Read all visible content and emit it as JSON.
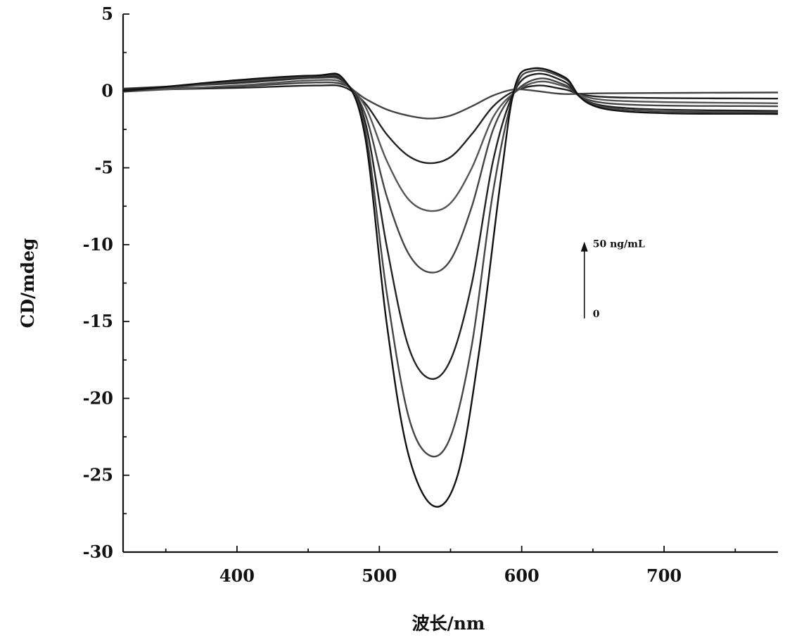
{
  "chart_data": {
    "type": "line",
    "title": "",
    "xlabel": "波长/nm",
    "ylabel": "CD/mdeg",
    "xlim": [
      320,
      780
    ],
    "ylim": [
      -30,
      5
    ],
    "xticks": [
      400,
      500,
      600,
      700
    ],
    "yticks": [
      5,
      0,
      -5,
      -10,
      -15,
      -20,
      -25,
      -30
    ],
    "grid": false,
    "annotation": {
      "top_label": "50 ng/mL",
      "bottom_label": "0",
      "x": 644,
      "y_from": -14.8,
      "y_to": -9.9
    },
    "series": [
      {
        "points": [
          [
            320,
            0.1
          ],
          [
            400,
            0.3
          ],
          [
            455,
            0.55
          ],
          [
            475,
            0.4
          ],
          [
            490,
            -0.5
          ],
          [
            505,
            -1.2
          ],
          [
            520,
            -1.6
          ],
          [
            535,
            -1.8
          ],
          [
            550,
            -1.6
          ],
          [
            565,
            -1.0
          ],
          [
            580,
            -0.3
          ],
          [
            595,
            0.1
          ],
          [
            610,
            0.0
          ],
          [
            630,
            -0.2
          ],
          [
            660,
            -0.15
          ],
          [
            780,
            -0.1
          ]
        ]
      },
      {
        "points": [
          [
            320,
            0.05
          ],
          [
            400,
            0.2
          ],
          [
            455,
            0.35
          ],
          [
            475,
            0.25
          ],
          [
            490,
            -0.8
          ],
          [
            505,
            -2.8
          ],
          [
            520,
            -4.2
          ],
          [
            535,
            -4.7
          ],
          [
            550,
            -4.3
          ],
          [
            565,
            -2.8
          ],
          [
            580,
            -1.0
          ],
          [
            595,
            0.0
          ],
          [
            612,
            0.35
          ],
          [
            630,
            0.1
          ],
          [
            660,
            -0.4
          ],
          [
            780,
            -0.5
          ]
        ]
      },
      {
        "points": [
          [
            320,
            -0.05
          ],
          [
            400,
            0.35
          ],
          [
            455,
            0.7
          ],
          [
            475,
            0.5
          ],
          [
            490,
            -1.0
          ],
          [
            505,
            -4.5
          ],
          [
            520,
            -7.0
          ],
          [
            535,
            -7.8
          ],
          [
            550,
            -7.3
          ],
          [
            565,
            -5.0
          ],
          [
            580,
            -1.7
          ],
          [
            595,
            -0.1
          ],
          [
            612,
            0.6
          ],
          [
            630,
            0.3
          ],
          [
            660,
            -0.6
          ],
          [
            780,
            -0.8
          ]
        ]
      },
      {
        "points": [
          [
            320,
            0.15
          ],
          [
            400,
            0.5
          ],
          [
            455,
            0.85
          ],
          [
            475,
            0.6
          ],
          [
            490,
            -1.5
          ],
          [
            505,
            -6.8
          ],
          [
            520,
            -10.5
          ],
          [
            535,
            -11.8
          ],
          [
            550,
            -11.0
          ],
          [
            565,
            -7.5
          ],
          [
            580,
            -2.5
          ],
          [
            595,
            -0.1
          ],
          [
            612,
            0.8
          ],
          [
            630,
            0.4
          ],
          [
            660,
            -0.8
          ],
          [
            780,
            -1.0
          ]
        ]
      },
      {
        "points": [
          [
            320,
            0.1
          ],
          [
            400,
            0.55
          ],
          [
            455,
            0.9
          ],
          [
            475,
            0.65
          ],
          [
            490,
            -2.0
          ],
          [
            505,
            -10.0
          ],
          [
            520,
            -16.5
          ],
          [
            535,
            -18.7
          ],
          [
            550,
            -17.5
          ],
          [
            565,
            -12.5
          ],
          [
            580,
            -4.5
          ],
          [
            595,
            0.0
          ],
          [
            610,
            1.1
          ],
          [
            630,
            0.6
          ],
          [
            660,
            -1.0
          ],
          [
            780,
            -1.3
          ]
        ]
      },
      {
        "points": [
          [
            320,
            -0.05
          ],
          [
            400,
            0.6
          ],
          [
            455,
            0.95
          ],
          [
            475,
            0.7
          ],
          [
            490,
            -2.5
          ],
          [
            505,
            -13.0
          ],
          [
            520,
            -21.0
          ],
          [
            535,
            -23.7
          ],
          [
            550,
            -22.5
          ],
          [
            565,
            -16.5
          ],
          [
            580,
            -6.5
          ],
          [
            595,
            0.0
          ],
          [
            608,
            1.3
          ],
          [
            630,
            0.8
          ],
          [
            660,
            -1.1
          ],
          [
            780,
            -1.4
          ]
        ]
      },
      {
        "points": [
          [
            320,
            0.0
          ],
          [
            400,
            0.7
          ],
          [
            455,
            1.0
          ],
          [
            475,
            0.75
          ],
          [
            490,
            -3.0
          ],
          [
            505,
            -15.0
          ],
          [
            520,
            -23.5
          ],
          [
            538,
            -27.0
          ],
          [
            555,
            -25.0
          ],
          [
            570,
            -17.0
          ],
          [
            585,
            -6.0
          ],
          [
            595,
            0.2
          ],
          [
            607,
            1.45
          ],
          [
            630,
            0.9
          ],
          [
            660,
            -1.2
          ],
          [
            780,
            -1.5
          ]
        ]
      }
    ]
  }
}
